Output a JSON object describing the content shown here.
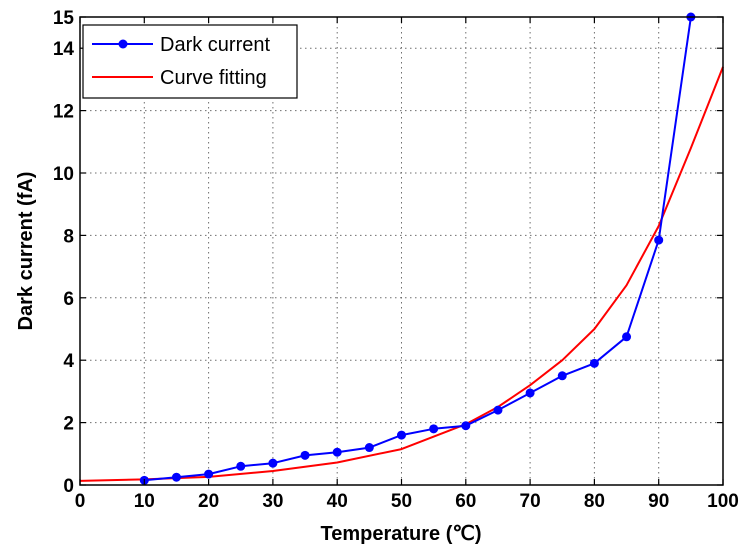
{
  "chart_data": {
    "type": "line",
    "xlabel": "Temperature (℃)",
    "ylabel": "Dark current (fA)",
    "xlim": [
      0,
      100
    ],
    "ylim": [
      0,
      15
    ],
    "xticks": [
      0,
      10,
      20,
      30,
      40,
      50,
      60,
      70,
      80,
      90,
      100
    ],
    "yticks": [
      0,
      2,
      4,
      6,
      8,
      10,
      12,
      14,
      15
    ],
    "grid": true,
    "legend_position": "top-left",
    "series": [
      {
        "name": "Dark current",
        "color": "#0000ff",
        "marker": "circle",
        "x": [
          10,
          15,
          20,
          25,
          30,
          35,
          40,
          45,
          50,
          55,
          60,
          65,
          70,
          75,
          80,
          85,
          90,
          95
        ],
        "y": [
          0.15,
          0.25,
          0.35,
          0.6,
          0.7,
          0.95,
          1.05,
          1.2,
          1.6,
          1.8,
          1.9,
          2.4,
          2.95,
          3.5,
          3.9,
          4.75,
          7.85,
          15.0
        ]
      },
      {
        "name": "Curve fitting",
        "color": "#ff0000",
        "marker": "none",
        "x": [
          0,
          10,
          20,
          30,
          40,
          50,
          60,
          65,
          70,
          75,
          80,
          85,
          90,
          95,
          100
        ],
        "y": [
          0.13,
          0.18,
          0.26,
          0.45,
          0.72,
          1.15,
          1.95,
          2.5,
          3.2,
          4.0,
          5.0,
          6.4,
          8.3,
          10.8,
          13.4
        ]
      }
    ]
  }
}
